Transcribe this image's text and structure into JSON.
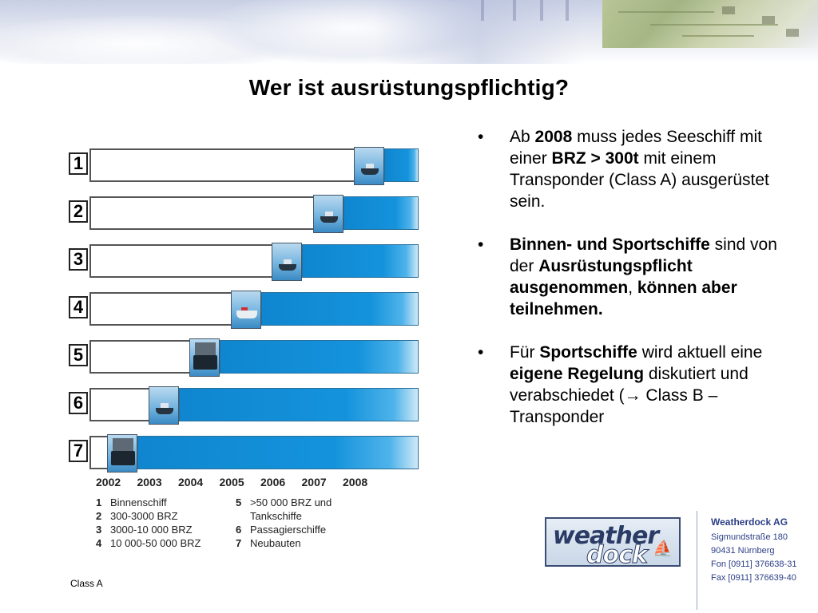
{
  "title": "Wer ist ausrüstungspflichtig?",
  "figure": {
    "rows": [
      {
        "number": "1",
        "from_year": "2008",
        "ship": "ship-icon"
      },
      {
        "number": "2",
        "from_year": "2007",
        "ship": "ship-icon"
      },
      {
        "number": "3",
        "from_year": "2006",
        "ship": "ship-icon"
      },
      {
        "number": "4",
        "from_year": "2005",
        "ship": "passenger-ship-icon"
      },
      {
        "number": "5",
        "from_year": "2004",
        "ship": "tanker-icon"
      },
      {
        "number": "6",
        "from_year": "2003",
        "ship": "ship-icon"
      },
      {
        "number": "7",
        "from_year": "2002",
        "ship": "newbuild-ship-icon"
      }
    ],
    "years": [
      "2002",
      "2003",
      "2004",
      "2005",
      "2006",
      "2007",
      "2008"
    ],
    "legend": [
      {
        "n": "1",
        "text": "Binnenschiff"
      },
      {
        "n": "2",
        "text": "300-3000 BRZ"
      },
      {
        "n": "3",
        "text": "3000-10 000 BRZ"
      },
      {
        "n": "4",
        "text": "10 000-50 000 BRZ"
      },
      {
        "n": "5",
        "text": ">50 000 BRZ und"
      },
      {
        "n": "",
        "text": "Tankschiffe"
      },
      {
        "n": "6",
        "text": "Passagierschiffe"
      },
      {
        "n": "7",
        "text": "Neubauten"
      }
    ]
  },
  "bullets": {
    "b1": {
      "t1": "Ab ",
      "s1": "2008",
      "t2": " muss jedes Seeschiff mit einer ",
      "s2": "BRZ > 300t",
      "t3": " mit einem Transponder (Class A) ausgerüstet sein."
    },
    "b2": {
      "s1": "Binnen- und Sportschiffe",
      "t1": " sind von der ",
      "s2": "Ausrüstungspflicht ausgenommen",
      "t2": ", ",
      "s3": "können aber teilnehmen."
    },
    "b3": {
      "t1": "Für ",
      "s1": "Sportschiffe",
      "t2": " wird aktuell eine ",
      "s2": "eigene Regelung",
      "t3": " diskutiert und verabschiedet (",
      "arrow": "→",
      "t4": " Class B – Transponder"
    }
  },
  "caption": "Class A",
  "logo": {
    "line1": "weather",
    "line2": "dock"
  },
  "company": {
    "name": "Weatherdock AG",
    "street": "Sigmundstraße 180",
    "city": "90431 Nürnberg",
    "phone": "Fon [0911] 376638-31",
    "fax": "Fax [0911] 376639-40"
  },
  "colors": {
    "bar_blue": "#1493dc",
    "company_text": "#2c3f86"
  }
}
